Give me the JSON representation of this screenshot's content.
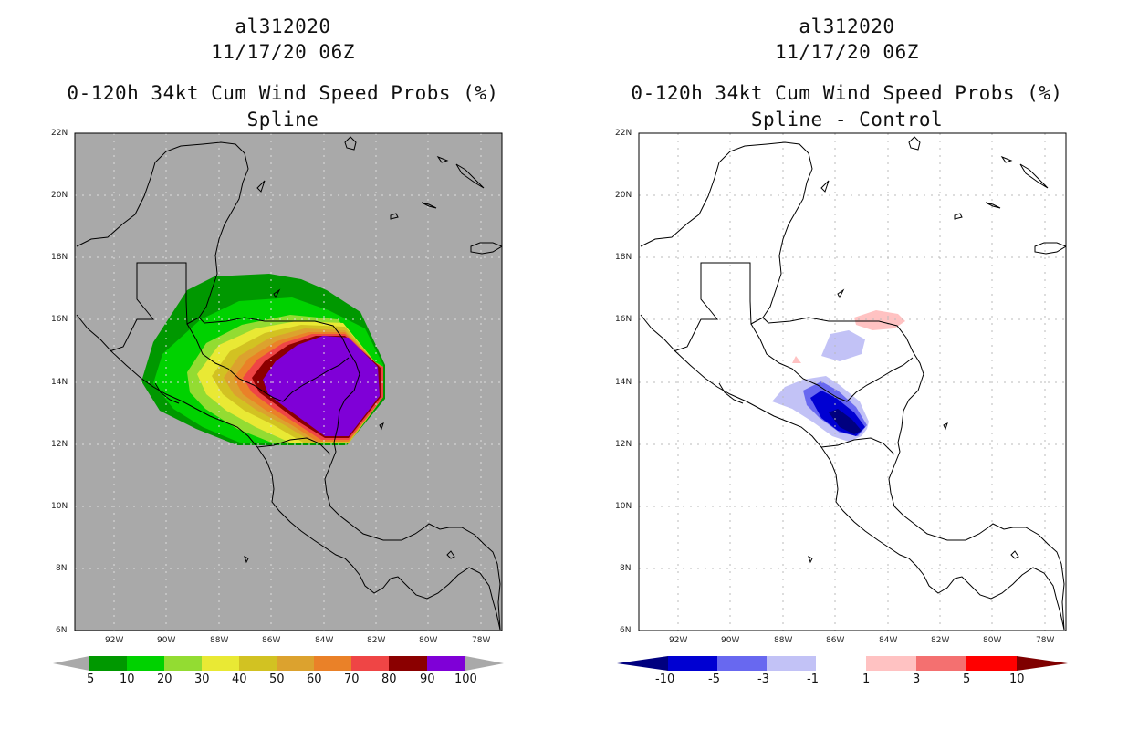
{
  "left_panel": {
    "title_line1": "al312020",
    "title_line2": "11/17/20 06Z",
    "title_line3": "0-120h 34kt Cum Wind Speed Probs (%)",
    "title_line4": "Spline",
    "colorbar_labels": [
      "5",
      "10",
      "20",
      "30",
      "40",
      "50",
      "60",
      "70",
      "80",
      "90",
      "100"
    ],
    "colorbar_colors": [
      "#009800",
      "#00d200",
      "#93dc32",
      "#e9e934",
      "#d2c222",
      "#dca22e",
      "#ea8128",
      "#ef4545",
      "#8b0000",
      "#7f00d7"
    ]
  },
  "right_panel": {
    "title_line1": "al312020",
    "title_line2": "11/17/20 06Z",
    "title_line3": "0-120h 34kt Cum Wind Speed Probs (%)",
    "title_line4": "Spline - Control",
    "colorbar_labels": [
      "-10",
      "-5",
      "-3",
      "-1",
      "1",
      "3",
      "5",
      "10"
    ],
    "colorbar_colors": [
      "#0000d2",
      "#6868f0",
      "#c2c2f6",
      "#ffffff",
      "#ffc2c2",
      "#f47070",
      "#ff0000"
    ],
    "colorbar_end_colors": [
      "#00007f",
      "#7f0000"
    ]
  },
  "axes": {
    "lat_labels": [
      "22N",
      "20N",
      "18N",
      "16N",
      "14N",
      "12N",
      "10N",
      "8N",
      "6N"
    ],
    "lon_labels": [
      "92W",
      "90W",
      "88W",
      "86W",
      "84W",
      "82W",
      "80W",
      "78W"
    ]
  },
  "colors": {
    "land_gray": "#a9a9a9",
    "coast": "#000000"
  }
}
